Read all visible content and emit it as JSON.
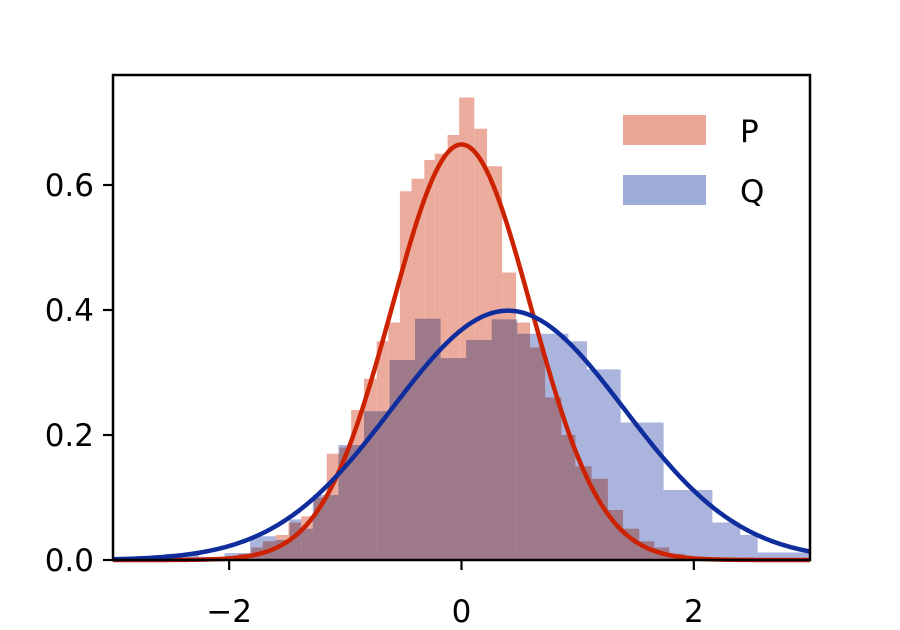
{
  "chart_data": {
    "type": "bar",
    "title": "",
    "xlabel": "",
    "ylabel": "",
    "xlim": [
      -3,
      3
    ],
    "ylim": [
      0,
      0.776
    ],
    "x_ticks": [
      -2,
      0,
      2
    ],
    "x_tick_labels": [
      "−2",
      "0",
      "2"
    ],
    "y_ticks": [
      0.0,
      0.2,
      0.4,
      0.6
    ],
    "y_tick_labels": [
      "0.0",
      "0.2",
      "0.4",
      "0.6"
    ],
    "grid": false,
    "legend_position": "top-right",
    "series": [
      {
        "name": "P",
        "kind": "histogram",
        "color": "#e9a596",
        "bins": [
          [
            -1.92,
            -1.81,
            0.01
          ],
          [
            -1.81,
            -1.71,
            0.02
          ],
          [
            -1.71,
            -1.6,
            0.03
          ],
          [
            -1.6,
            -1.49,
            0.04
          ],
          [
            -1.49,
            -1.38,
            0.06
          ],
          [
            -1.38,
            -1.27,
            0.07
          ],
          [
            -1.27,
            -1.16,
            0.1
          ],
          [
            -1.16,
            -1.05,
            0.17
          ],
          [
            -1.05,
            -0.95,
            0.18
          ],
          [
            -0.95,
            -0.84,
            0.24
          ],
          [
            -0.84,
            -0.73,
            0.29
          ],
          [
            -0.73,
            -0.63,
            0.35
          ],
          [
            -0.63,
            -0.53,
            0.38
          ],
          [
            -0.53,
            -0.43,
            0.59
          ],
          [
            -0.43,
            -0.32,
            0.61
          ],
          [
            -0.32,
            -0.23,
            0.64
          ],
          [
            -0.23,
            -0.12,
            0.65
          ],
          [
            -0.12,
            -0.02,
            0.68
          ],
          [
            -0.02,
            0.11,
            0.74
          ],
          [
            0.11,
            0.22,
            0.69
          ],
          [
            0.22,
            0.35,
            0.63
          ],
          [
            0.35,
            0.47,
            0.46
          ],
          [
            0.47,
            0.59,
            0.38
          ],
          [
            0.59,
            0.72,
            0.34
          ],
          [
            0.72,
            0.86,
            0.26
          ],
          [
            0.86,
            0.98,
            0.2
          ],
          [
            0.98,
            1.12,
            0.15
          ],
          [
            1.12,
            1.26,
            0.13
          ],
          [
            1.26,
            1.39,
            0.08
          ],
          [
            1.39,
            1.53,
            0.05
          ],
          [
            1.53,
            1.66,
            0.03
          ],
          [
            1.66,
            1.79,
            0.02
          ],
          [
            1.79,
            1.92,
            0.01
          ]
        ]
      },
      {
        "name": "Q",
        "kind": "histogram",
        "color": "#9eaad8",
        "bins": [
          [
            -2.55,
            -2.26,
            0.01
          ],
          [
            -2.26,
            -2.04,
            0.005
          ],
          [
            -2.04,
            -1.82,
            0.011
          ],
          [
            -1.82,
            -1.6,
            0.038
          ],
          [
            -1.6,
            -1.48,
            0.032
          ],
          [
            -1.48,
            -1.38,
            0.065
          ],
          [
            -1.38,
            -1.28,
            0.05
          ],
          [
            -1.28,
            -1.06,
            0.104
          ],
          [
            -1.06,
            -0.84,
            0.184
          ],
          [
            -0.84,
            -0.62,
            0.238
          ],
          [
            -0.62,
            -0.4,
            0.32
          ],
          [
            -0.4,
            -0.18,
            0.386
          ],
          [
            -0.18,
            0.04,
            0.323
          ],
          [
            0.04,
            0.26,
            0.352
          ],
          [
            0.26,
            0.48,
            0.385
          ],
          [
            0.48,
            0.7,
            0.362
          ],
          [
            0.7,
            0.92,
            0.362
          ],
          [
            0.92,
            1.08,
            0.35
          ],
          [
            1.08,
            1.37,
            0.305
          ],
          [
            1.37,
            1.74,
            0.22
          ],
          [
            1.74,
            2.16,
            0.112
          ],
          [
            2.16,
            2.4,
            0.06
          ],
          [
            2.4,
            2.55,
            0.04
          ],
          [
            2.55,
            3.0,
            0.012
          ]
        ]
      },
      {
        "name": "P density",
        "kind": "normal-pdf",
        "color": "#cc2200",
        "mu": 0.0,
        "sigma": 0.6
      },
      {
        "name": "Q density",
        "kind": "normal-pdf",
        "color": "#0f2d9c",
        "mu": 0.4,
        "sigma": 1.0
      }
    ],
    "legend": [
      {
        "label": "P",
        "color": "#e9a596"
      },
      {
        "label": "Q",
        "color": "#9eaad8"
      }
    ]
  }
}
